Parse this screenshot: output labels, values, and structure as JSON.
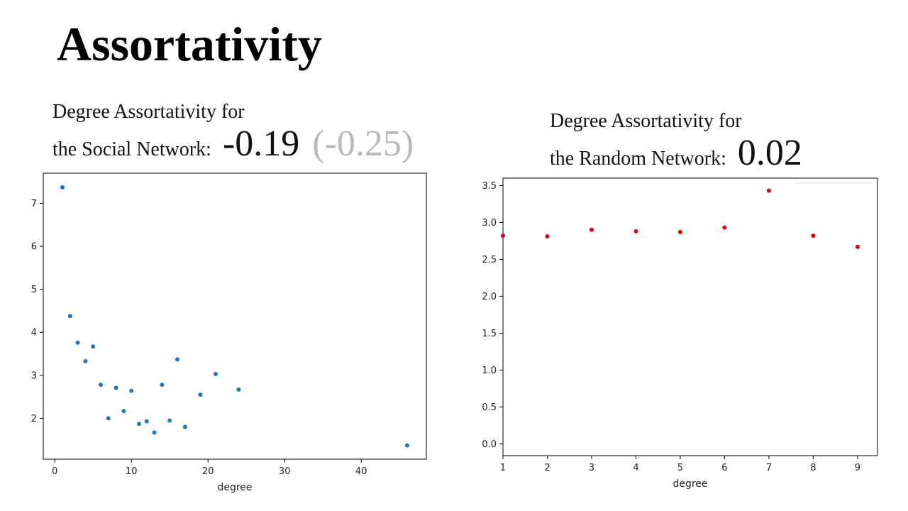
{
  "slide": {
    "title": "Assortativity"
  },
  "captions": {
    "social": {
      "line1": "Degree Assortativity for",
      "line2": "the Social Network:",
      "value": "-0.19",
      "alt_value": "(-0.25)"
    },
    "random": {
      "line1": "Degree Assortativity for",
      "line2": "the Random Network:",
      "value": "0.02"
    }
  },
  "chart_data": [
    {
      "type": "scatter",
      "title": "",
      "xlabel": "degree",
      "ylabel": "",
      "color": "#1f77b4",
      "xlim": [
        -1.5,
        48.5
      ],
      "ylim": [
        1.05,
        7.7
      ],
      "xticks": [
        0,
        10,
        20,
        30,
        40
      ],
      "yticks": [
        2,
        3,
        4,
        5,
        6,
        7
      ],
      "points": [
        {
          "x": 1,
          "y": 7.37
        },
        {
          "x": 2,
          "y": 4.38
        },
        {
          "x": 3,
          "y": 3.76
        },
        {
          "x": 4,
          "y": 3.33
        },
        {
          "x": 5,
          "y": 3.67
        },
        {
          "x": 6,
          "y": 2.78
        },
        {
          "x": 7,
          "y": 2.0
        },
        {
          "x": 8,
          "y": 2.71
        },
        {
          "x": 9,
          "y": 2.17
        },
        {
          "x": 10,
          "y": 2.64
        },
        {
          "x": 11,
          "y": 1.87
        },
        {
          "x": 12,
          "y": 1.93
        },
        {
          "x": 13,
          "y": 1.67
        },
        {
          "x": 14,
          "y": 2.78
        },
        {
          "x": 15,
          "y": 1.95
        },
        {
          "x": 16,
          "y": 3.37
        },
        {
          "x": 17,
          "y": 1.8
        },
        {
          "x": 19,
          "y": 2.55
        },
        {
          "x": 21,
          "y": 3.03
        },
        {
          "x": 24,
          "y": 2.67
        },
        {
          "x": 46,
          "y": 1.37
        }
      ]
    },
    {
      "type": "scatter",
      "title": "",
      "xlabel": "degree",
      "ylabel": "",
      "color": "#e00000",
      "xlim": [
        1,
        9.45
      ],
      "ylim": [
        -0.16,
        3.6
      ],
      "xticks": [
        1,
        2,
        3,
        4,
        5,
        6,
        7,
        8,
        9
      ],
      "yticks": [
        0.0,
        0.5,
        1.0,
        1.5,
        2.0,
        2.5,
        3.0,
        3.5
      ],
      "points": [
        {
          "x": 1,
          "y": 2.82
        },
        {
          "x": 2,
          "y": 2.81
        },
        {
          "x": 3,
          "y": 2.9
        },
        {
          "x": 4,
          "y": 2.88
        },
        {
          "x": 5,
          "y": 2.87
        },
        {
          "x": 6,
          "y": 2.93
        },
        {
          "x": 7,
          "y": 3.43
        },
        {
          "x": 8,
          "y": 2.82
        },
        {
          "x": 9,
          "y": 2.67
        }
      ]
    }
  ]
}
